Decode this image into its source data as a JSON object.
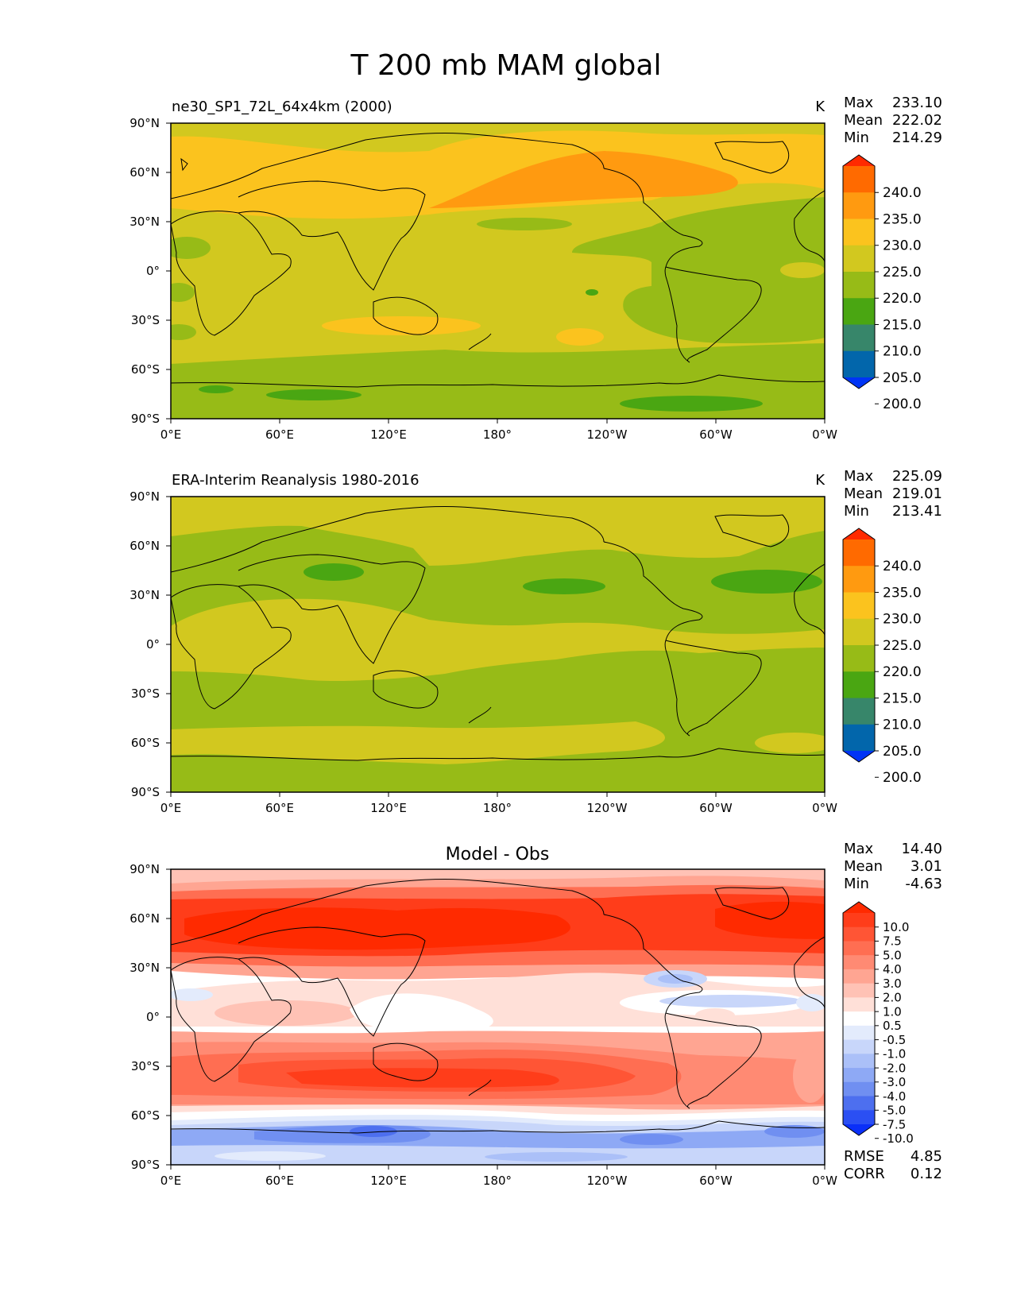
{
  "figure": {
    "title": "T 200 mb MAM global"
  },
  "chart_data": [
    {
      "type": "contour-map",
      "title": "ne30_SP1_72L_64x4km (2000)",
      "units": "K",
      "stats": {
        "max_label": "Max",
        "max": "233.10",
        "mean_label": "Mean",
        "mean": "222.02",
        "min_label": "Min",
        "min": "214.29"
      },
      "colorbar": {
        "ticks": [
          "240.0",
          "235.0",
          "230.0",
          "225.0",
          "220.0",
          "215.0",
          "210.0",
          "205.0",
          "200.0"
        ],
        "colors": [
          "#ff2a00",
          "#ff6a00",
          "#ff9a10",
          "#fbc31e",
          "#d2c81f",
          "#97bb17",
          "#4aa612",
          "#37866a",
          "#0266ab",
          "#0034f5"
        ]
      },
      "x_ticks": [
        "0°E",
        "60°E",
        "120°E",
        "180°",
        "120°W",
        "60°W",
        "0°W"
      ],
      "y_ticks": [
        "90°N",
        "60°N",
        "30°N",
        "0°",
        "30°S",
        "60°S",
        "90°S"
      ]
    },
    {
      "type": "contour-map",
      "title": "ERA-Interim Reanalysis 1980-2016",
      "units": "K",
      "stats": {
        "max_label": "Max",
        "max": "225.09",
        "mean_label": "Mean",
        "mean": "219.01",
        "min_label": "Min",
        "min": "213.41"
      },
      "colorbar": {
        "ticks": [
          "240.0",
          "235.0",
          "230.0",
          "225.0",
          "220.0",
          "215.0",
          "210.0",
          "205.0",
          "200.0"
        ],
        "colors": [
          "#ff2a00",
          "#ff6a00",
          "#ff9a10",
          "#fbc31e",
          "#d2c81f",
          "#97bb17",
          "#4aa612",
          "#37866a",
          "#0266ab",
          "#0034f5"
        ]
      },
      "x_ticks": [
        "0°E",
        "60°E",
        "120°E",
        "180°",
        "120°W",
        "60°W",
        "0°W"
      ],
      "y_ticks": [
        "90°N",
        "60°N",
        "30°N",
        "0°",
        "30°S",
        "60°S",
        "90°S"
      ]
    },
    {
      "type": "contour-map",
      "title": "Model - Obs",
      "units": "",
      "stats": {
        "max_label": "Max",
        "max": "14.40",
        "mean_label": "Mean",
        "mean": "3.01",
        "min_label": "Min",
        "min": "-4.63"
      },
      "rmse_label": "RMSE",
      "rmse": "4.85",
      "corr_label": "CORR",
      "corr": "0.12",
      "colorbar": {
        "ticks": [
          "10.0",
          "7.5",
          "5.0",
          "4.0",
          "3.0",
          "2.0",
          "1.0",
          "0.5",
          "-0.5",
          "-1.0",
          "-2.0",
          "-3.0",
          "-4.0",
          "-5.0",
          "-7.5",
          "-10.0"
        ],
        "colors": [
          "#ff2a00",
          "#ff3d1a",
          "#ff5535",
          "#ff6e52",
          "#ff8a73",
          "#ffa592",
          "#ffc2b5",
          "#ffe0d8",
          "#ffffff",
          "#e3ebfc",
          "#c8d6fa",
          "#abc0f8",
          "#8ea9f5",
          "#708ff1",
          "#4d6fef",
          "#2b4ff3",
          "#0a2ff8"
        ]
      },
      "x_ticks": [
        "0°E",
        "60°E",
        "120°E",
        "180°",
        "120°W",
        "60°W",
        "0°W"
      ],
      "y_ticks": [
        "90°N",
        "60°N",
        "30°N",
        "0°",
        "30°S",
        "60°S",
        "90°S"
      ]
    }
  ]
}
